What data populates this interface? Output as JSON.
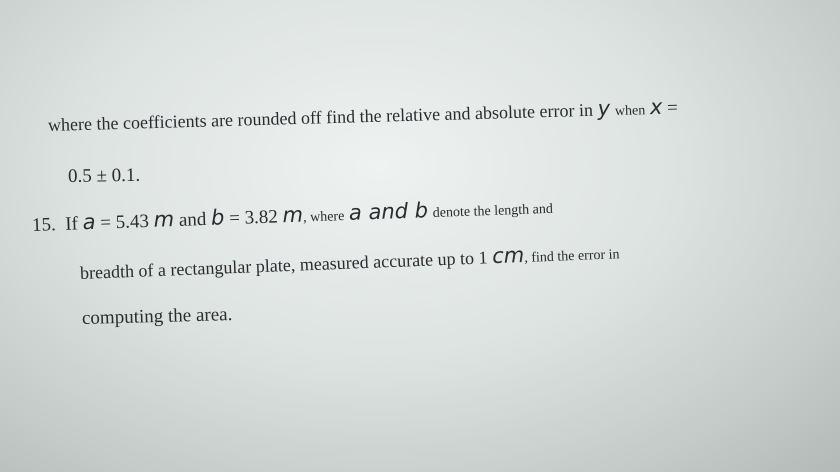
{
  "question_14_continued": {
    "lines": [
      [
        "where the coefficients are rounded off find the relative and absolute error in",
        "y",
        "when",
        "x",
        "="
      ],
      [
        "0.5 ± 0.1."
      ]
    ]
  },
  "question_15": {
    "number": "15.",
    "lines": [
      [
        "If",
        "a",
        "= 5.43",
        "m",
        "and",
        "b",
        "= 3.82",
        "m",
        ", where",
        "a and b",
        "denote the length and"
      ],
      [
        "breadth of a rectangular plate, measured accurate up to 1",
        "cm",
        ", find the error in"
      ],
      [
        "computing the area."
      ]
    ]
  }
}
